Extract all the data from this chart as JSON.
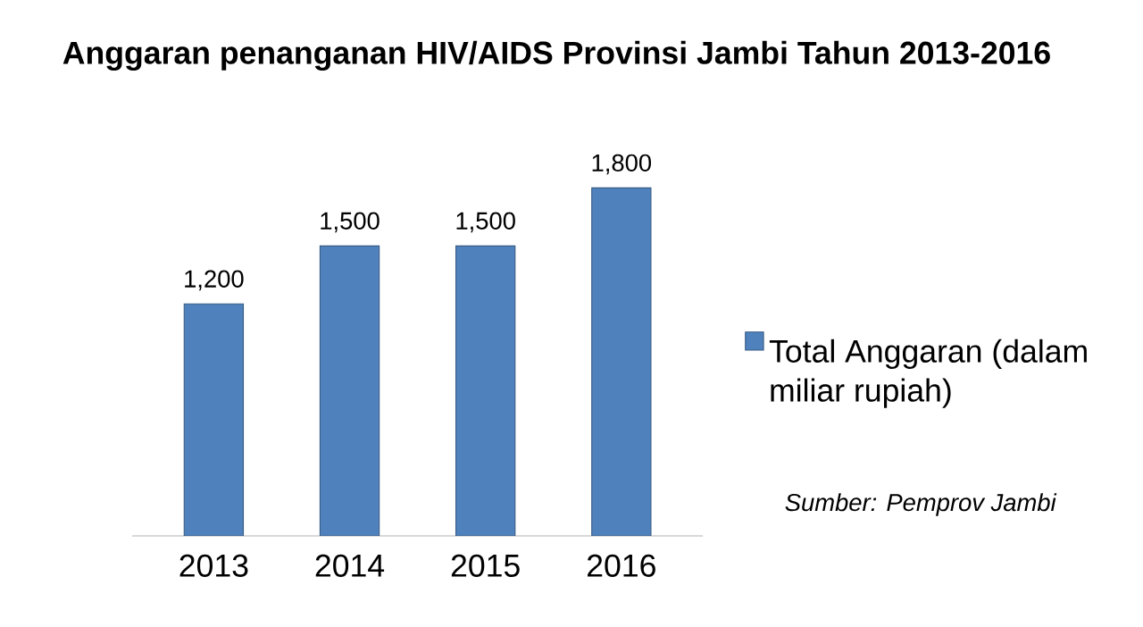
{
  "chart_data": {
    "type": "bar",
    "title": "Anggaran penanganan HIV/AIDS Provinsi Jambi Tahun 2013-2016",
    "categories": [
      "2013",
      "2014",
      "2015",
      "2016"
    ],
    "series": [
      {
        "name": "Total Anggaran (dalam miliar rupiah)",
        "color": "#4f81bd",
        "values": [
          1200,
          1500,
          1500,
          1800
        ],
        "value_labels": [
          "1,200",
          "1,500",
          "1,500",
          "1,800"
        ]
      }
    ],
    "legend": "right",
    "annotations": [
      "Sumber: Pemprov Jambi"
    ]
  }
}
